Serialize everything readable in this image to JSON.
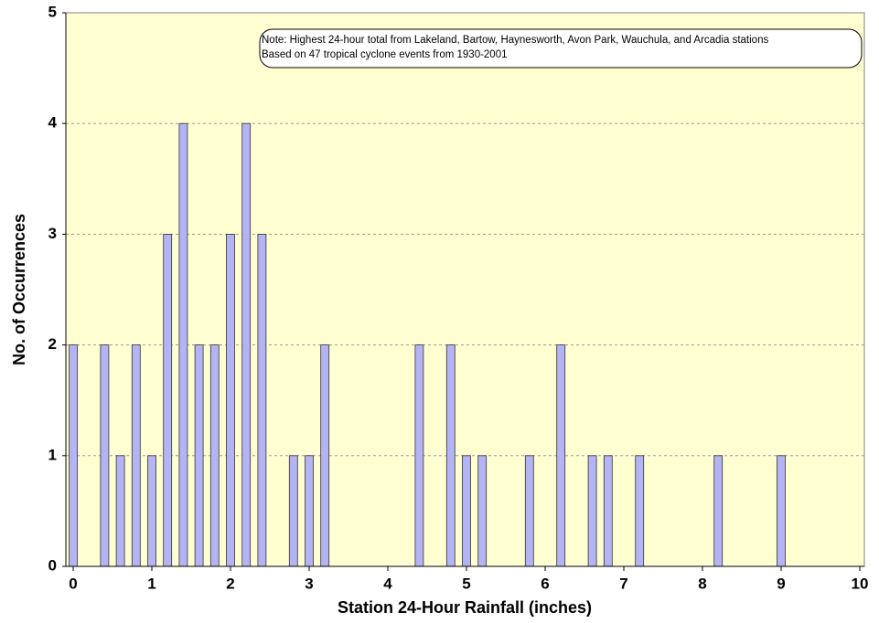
{
  "chart_data": {
    "type": "bar",
    "xlabel": "Station 24-Hour Rainfall (inches)",
    "ylabel": "No. of Occurrences",
    "note": [
      "Note: Highest 24-hour total from Lakeland, Bartow, Haynesworth, Avon Park, Wauchula, and Arcadia stations",
      "Based on 47 tropical cyclone events from 1930-2001"
    ],
    "x": [
      0,
      0.4,
      0.6,
      0.8,
      1.0,
      1.2,
      1.4,
      1.6,
      1.8,
      2.0,
      2.2,
      2.4,
      2.8,
      3.0,
      3.2,
      4.4,
      4.8,
      5.0,
      5.2,
      5.8,
      6.2,
      6.6,
      6.8,
      7.2,
      8.2,
      9.0
    ],
    "values": [
      2,
      2,
      1,
      2,
      1,
      3,
      4,
      2,
      2,
      3,
      4,
      3,
      1,
      1,
      2,
      2,
      2,
      1,
      1,
      1,
      2,
      1,
      1,
      1,
      1,
      1
    ],
    "color": "#b4b4f4",
    "xlim": [
      0,
      10
    ],
    "xticks": [
      0,
      1,
      2,
      3,
      4,
      5,
      6,
      7,
      8,
      9,
      10
    ],
    "ylim": [
      0,
      5
    ],
    "yticks": [
      0,
      1,
      2,
      3,
      4,
      5
    ],
    "grid": true
  }
}
